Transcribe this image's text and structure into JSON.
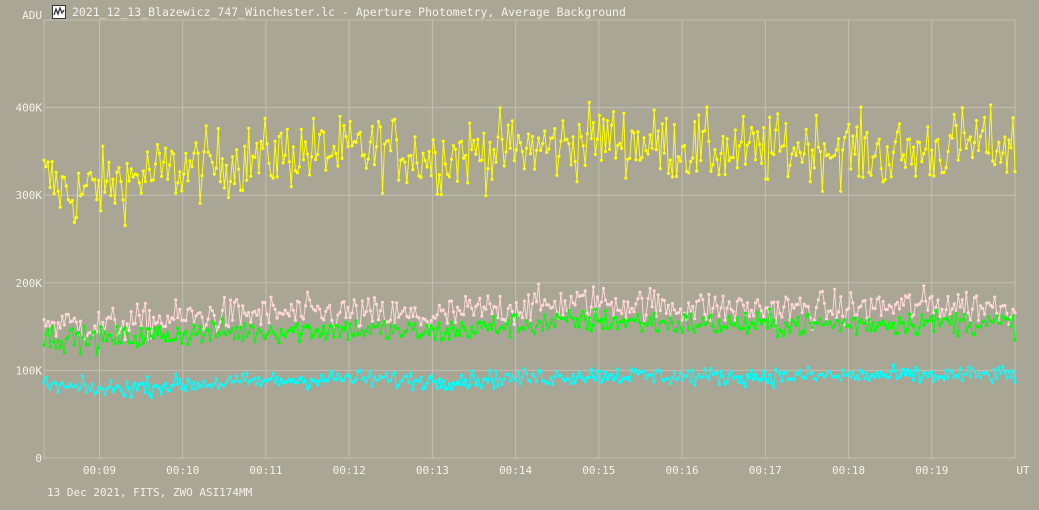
{
  "window": {
    "title": "2021_12_13_Blazewicz_747_Winchester.lc - Aperture Photometry, Average Background",
    "footer": "13 Dec 2021, FITS, ZWO ASI174MM"
  },
  "icons": {
    "app": "lightcurve-app-icon"
  },
  "colors": {
    "background": "#a9a696",
    "grid": "#c3c0b3",
    "text": "#f4f2ea",
    "yellow_series": "#ffff00",
    "pink_series": "#ffd7d7",
    "green_series": "#00ff00",
    "cyan_series": "#00ffff"
  },
  "chart_data": {
    "type": "line",
    "title": "2021_12_13_Blazewicz_747_Winchester.lc - Aperture Photometry, Average Background",
    "ylabel": "ADU",
    "xlabel": "UT",
    "ylim": [
      0,
      500000
    ],
    "yticks": [
      {
        "value": 0,
        "label": "0"
      },
      {
        "value": 100000,
        "label": "100K"
      },
      {
        "value": 200000,
        "label": "200K"
      },
      {
        "value": 300000,
        "label": "300K"
      },
      {
        "value": 400000,
        "label": "400K"
      }
    ],
    "xlim": [
      "00:08:20",
      "00:20:00"
    ],
    "xticks": [
      "00:09",
      "00:10",
      "00:11",
      "00:12",
      "00:13",
      "00:14",
      "00:15",
      "00:16",
      "00:17",
      "00:18",
      "00:19"
    ],
    "grid": true,
    "markers": true,
    "series": [
      {
        "color": "#ffff00",
        "trend": [
          {
            "x": "00:08:20",
            "y": 320000
          },
          {
            "x": "00:08:40",
            "y": 300000
          },
          {
            "x": "00:09:00",
            "y": 310000
          },
          {
            "x": "00:09:30",
            "y": 322000
          },
          {
            "x": "00:10:00",
            "y": 330000
          },
          {
            "x": "00:10:30",
            "y": 337000
          },
          {
            "x": "00:11:00",
            "y": 345000
          },
          {
            "x": "00:11:30",
            "y": 350000
          },
          {
            "x": "00:12:00",
            "y": 349000
          },
          {
            "x": "00:12:30",
            "y": 353000
          },
          {
            "x": "00:13:00",
            "y": 342000
          },
          {
            "x": "00:13:30",
            "y": 350000
          },
          {
            "x": "00:14:00",
            "y": 352000
          },
          {
            "x": "00:14:30",
            "y": 356000
          },
          {
            "x": "00:15:00",
            "y": 366000
          },
          {
            "x": "00:15:30",
            "y": 360000
          },
          {
            "x": "00:16:00",
            "y": 355000
          },
          {
            "x": "00:16:30",
            "y": 350000
          },
          {
            "x": "00:17:00",
            "y": 350000
          },
          {
            "x": "00:17:30",
            "y": 355000
          },
          {
            "x": "00:18:00",
            "y": 352000
          },
          {
            "x": "00:18:30",
            "y": 345000
          },
          {
            "x": "00:19:00",
            "y": 352000
          },
          {
            "x": "00:19:30",
            "y": 360000
          },
          {
            "x": "00:20:00",
            "y": 355000
          }
        ],
        "scatter": 20000
      },
      {
        "color": "#ffd7d7",
        "trend": [
          {
            "x": "00:08:20",
            "y": 155000
          },
          {
            "x": "00:09:00",
            "y": 150000
          },
          {
            "x": "00:10:00",
            "y": 160000
          },
          {
            "x": "00:11:00",
            "y": 165000
          },
          {
            "x": "00:12:00",
            "y": 165000
          },
          {
            "x": "00:13:00",
            "y": 160000
          },
          {
            "x": "00:13:30",
            "y": 168000
          },
          {
            "x": "00:14:00",
            "y": 172000
          },
          {
            "x": "00:15:00",
            "y": 178000
          },
          {
            "x": "00:16:00",
            "y": 172000
          },
          {
            "x": "00:17:00",
            "y": 170000
          },
          {
            "x": "00:18:00",
            "y": 170000
          },
          {
            "x": "00:19:00",
            "y": 175000
          },
          {
            "x": "00:20:00",
            "y": 172000
          }
        ],
        "scatter": 10000
      },
      {
        "color": "#00ff00",
        "trend": [
          {
            "x": "00:08:20",
            "y": 138000
          },
          {
            "x": "00:09:00",
            "y": 135000
          },
          {
            "x": "00:10:00",
            "y": 142000
          },
          {
            "x": "00:11:00",
            "y": 145000
          },
          {
            "x": "00:12:00",
            "y": 147000
          },
          {
            "x": "00:13:00",
            "y": 143000
          },
          {
            "x": "00:14:00",
            "y": 152000
          },
          {
            "x": "00:15:00",
            "y": 157000
          },
          {
            "x": "00:16:00",
            "y": 153000
          },
          {
            "x": "00:17:00",
            "y": 152000
          },
          {
            "x": "00:18:00",
            "y": 153000
          },
          {
            "x": "00:19:00",
            "y": 155000
          },
          {
            "x": "00:20:00",
            "y": 153000
          }
        ],
        "scatter": 7000
      },
      {
        "color": "#00ffff",
        "trend": [
          {
            "x": "00:08:20",
            "y": 83000
          },
          {
            "x": "00:09:00",
            "y": 78000
          },
          {
            "x": "00:10:00",
            "y": 84000
          },
          {
            "x": "00:11:00",
            "y": 88000
          },
          {
            "x": "00:12:00",
            "y": 91000
          },
          {
            "x": "00:13:00",
            "y": 88000
          },
          {
            "x": "00:14:00",
            "y": 91000
          },
          {
            "x": "00:15:00",
            "y": 95000
          },
          {
            "x": "00:16:00",
            "y": 93000
          },
          {
            "x": "00:17:00",
            "y": 93000
          },
          {
            "x": "00:18:00",
            "y": 94000
          },
          {
            "x": "00:19:00",
            "y": 94000
          },
          {
            "x": "00:20:00",
            "y": 95000
          }
        ],
        "scatter": 5000
      }
    ]
  }
}
